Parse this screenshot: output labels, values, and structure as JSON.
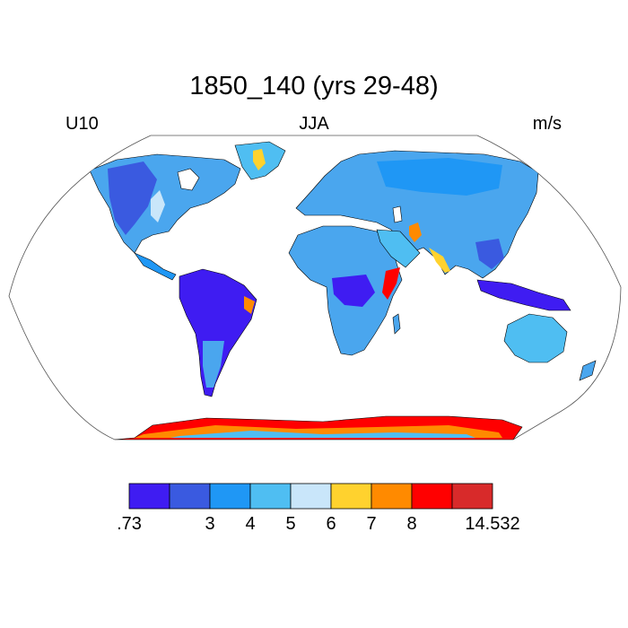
{
  "title": "1850_140 (yrs 29-48)",
  "subtitle_left": "U10",
  "subtitle_center": "JJA",
  "subtitle_right": "m/s",
  "colorbar": {
    "colors": [
      "#3f1cf2",
      "#3a5ae0",
      "#1f97f5",
      "#4fbef2",
      "#c9e6fa",
      "#ffd22e",
      "#ff8a00",
      "#ff0000",
      "#d82a2a"
    ],
    "labels": [
      ".73",
      "3",
      "4",
      "5",
      "6",
      "7",
      "8",
      "14.532"
    ]
  },
  "map": {
    "projection": "Robinson",
    "ocean_color": "#ffffff",
    "coastline_color": "#000000"
  }
}
